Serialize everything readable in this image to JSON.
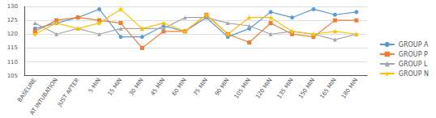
{
  "chart_data": {
    "type": "line",
    "categories": [
      "BASELINE",
      "AT INTUBATION",
      "JUST AFTER",
      "5 MIN",
      "15 MIN",
      "30 MIN",
      "45 MIN",
      "60 MIN",
      "75 MIN",
      "90 MIN",
      "105 MIN",
      "120 MIN",
      "135 MIN",
      "150 MIN",
      "165 MIN",
      "180 MIN"
    ],
    "series": [
      {
        "name": "GROUP A",
        "color": "#5B9BD5",
        "marker": "circle",
        "values": [
          122,
          124,
          126,
          129,
          119,
          119,
          123,
          121,
          126,
          119,
          122,
          128,
          126,
          129,
          127,
          128
        ]
      },
      {
        "name": "GROUP P",
        "color": "#ED7D31",
        "marker": "square",
        "values": [
          121,
          125,
          126,
          125,
          124,
          115,
          121,
          121,
          127,
          120,
          117,
          124,
          120,
          119,
          125,
          125
        ]
      },
      {
        "name": "GROUP L",
        "color": "#A5A5A5",
        "marker": "triangle",
        "values": [
          124,
          120,
          122,
          120,
          122,
          122,
          122,
          126,
          126,
          124,
          123,
          120,
          121,
          120,
          118,
          120
        ]
      },
      {
        "name": "GROUP N",
        "color": "#FFC000",
        "marker": "star",
        "values": [
          120,
          124,
          122,
          124,
          129,
          122,
          124,
          121,
          127,
          120,
          126,
          126,
          121,
          120,
          121,
          120
        ]
      }
    ],
    "ylim": [
      105,
      130
    ],
    "yticks": [
      105,
      110,
      115,
      120,
      125,
      130
    ],
    "grid": true,
    "legend": "right"
  }
}
